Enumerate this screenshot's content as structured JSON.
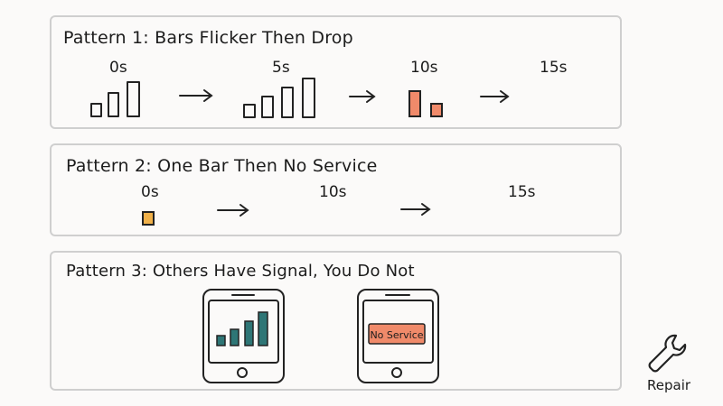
{
  "panels": [
    {
      "title": "Pattern 1: Bars Flicker Then Drop",
      "time_labels": [
        "0s",
        "5s",
        "10s",
        "15s"
      ],
      "bars_shown": [
        3,
        4,
        2,
        0
      ]
    },
    {
      "title": "Pattern 2: One Bar Then No Service",
      "time_labels": [
        "0s",
        "10s",
        "15s"
      ],
      "bars_shown": [
        1,
        0,
        0
      ]
    },
    {
      "title": "Pattern 3: Others Have Signal, You Do Not",
      "phones": [
        {
          "state": "full-signal",
          "bars": 4
        },
        {
          "state": "no-service",
          "message": "No Service"
        }
      ]
    }
  ],
  "tool": {
    "label": "Repair",
    "icon": "wrench-icon"
  },
  "colors": {
    "outline": "#222222",
    "drop_bar": "#f08a6a",
    "single_bar": "#f0b14a",
    "signal_bar": "#2e7676",
    "no_service_bg": "#f08a6a",
    "panel_border": "#cfcfcf"
  }
}
